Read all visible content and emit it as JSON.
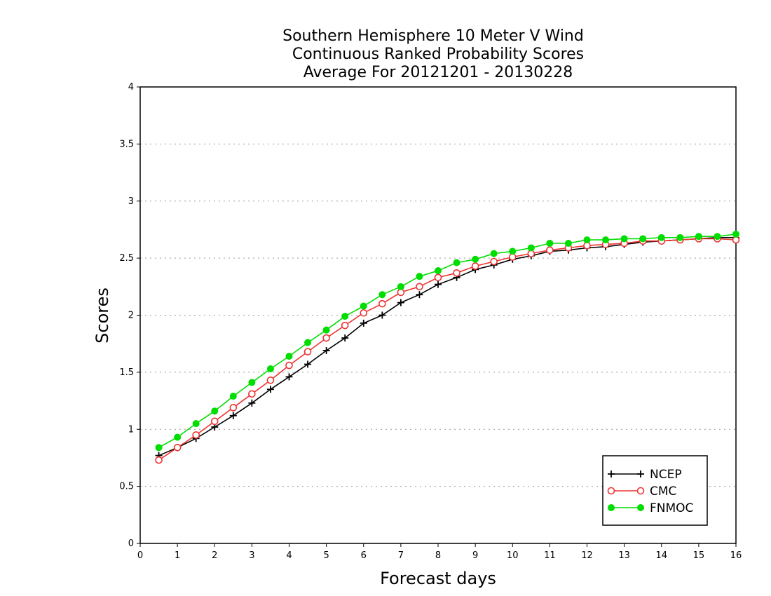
{
  "chart_data": {
    "type": "line",
    "title": [
      "Southern Hemisphere 10 Meter V Wind",
      "Continuous Ranked Probability Scores",
      "Average For 20121201 - 20130228"
    ],
    "xlabel": "Forecast days",
    "ylabel": "Scores",
    "xlim": [
      0,
      16
    ],
    "ylim": [
      0,
      4
    ],
    "xticks": [
      "0",
      "1",
      "2",
      "3",
      "4",
      "5",
      "6",
      "7",
      "8",
      "9",
      "10",
      "11",
      "12",
      "13",
      "14",
      "15",
      "16"
    ],
    "yticks": [
      "0",
      "0.5",
      "1",
      "1.5",
      "2",
      "2.5",
      "3",
      "3.5",
      "4"
    ],
    "grid": "horizontal dotted",
    "legend_position": "bottom-right",
    "x": [
      0.5,
      1,
      1.5,
      2,
      2.5,
      3,
      3.5,
      4,
      4.5,
      5,
      5.5,
      6,
      6.5,
      7,
      7.5,
      8,
      8.5,
      9,
      9.5,
      10,
      10.5,
      11,
      11.5,
      12,
      12.5,
      13,
      13.5,
      14,
      14.5,
      15,
      15.5,
      16
    ],
    "series": [
      {
        "name": "NCEP",
        "color": "#000000",
        "marker": "plus",
        "values": [
          0.77,
          0.84,
          0.92,
          1.02,
          1.12,
          1.23,
          1.35,
          1.46,
          1.57,
          1.69,
          1.8,
          1.93,
          2.0,
          2.11,
          2.18,
          2.27,
          2.33,
          2.4,
          2.44,
          2.49,
          2.52,
          2.56,
          2.57,
          2.59,
          2.6,
          2.62,
          2.64,
          2.65,
          2.66,
          2.67,
          2.68,
          2.68
        ]
      },
      {
        "name": "CMC",
        "color": "#ee3333",
        "marker": "open-circle",
        "values": [
          0.73,
          0.84,
          0.95,
          1.07,
          1.19,
          1.31,
          1.43,
          1.56,
          1.68,
          1.8,
          1.91,
          2.02,
          2.1,
          2.2,
          2.25,
          2.33,
          2.37,
          2.43,
          2.47,
          2.51,
          2.54,
          2.57,
          2.59,
          2.61,
          2.62,
          2.63,
          2.65,
          2.65,
          2.66,
          2.67,
          2.67,
          2.66
        ]
      },
      {
        "name": "FNMOC",
        "color": "#00dd00",
        "marker": "filled-circle",
        "values": [
          0.84,
          0.93,
          1.05,
          1.16,
          1.29,
          1.41,
          1.53,
          1.64,
          1.76,
          1.87,
          1.99,
          2.08,
          2.18,
          2.25,
          2.34,
          2.39,
          2.46,
          2.49,
          2.54,
          2.56,
          2.59,
          2.63,
          2.63,
          2.66,
          2.66,
          2.67,
          2.67,
          2.68,
          2.68,
          2.69,
          2.69,
          2.71
        ]
      }
    ]
  }
}
